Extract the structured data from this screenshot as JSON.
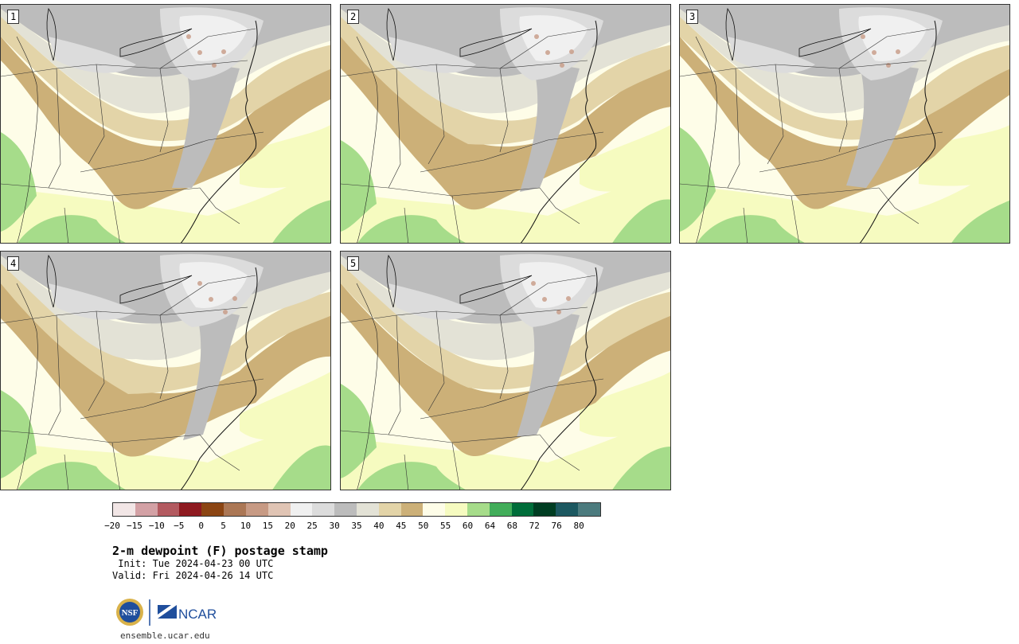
{
  "panels": [
    {
      "label": "1"
    },
    {
      "label": "2"
    },
    {
      "label": "3"
    },
    {
      "label": "4"
    },
    {
      "label": "5"
    }
  ],
  "colorbar": {
    "colors": [
      "#f2e6e6",
      "#d3a1a5",
      "#b35a60",
      "#8e1a20",
      "#8b4513",
      "#ab7755",
      "#c79a84",
      "#e0c4b4",
      "#f0f0f0",
      "#dcdcdc",
      "#bcbcbc",
      "#e3e2d6",
      "#e3d4a8",
      "#ccb078",
      "#fefde8",
      "#f6fbc0",
      "#a6dc8a",
      "#42ad5a",
      "#006d3a",
      "#003d22",
      "#1c5860",
      "#4c7b7e"
    ],
    "ticks": [
      "-20",
      "-15",
      "-10",
      "-5",
      "0",
      "5",
      "10",
      "15",
      "20",
      "25",
      "30",
      "35",
      "40",
      "45",
      "50",
      "55",
      "60",
      "64",
      "68",
      "72",
      "76",
      "80"
    ]
  },
  "title": "2-m dewpoint (F) postage stamp",
  "init": " Init: Tue 2024-04-23 00 UTC",
  "valid": "Valid: Fri 2024-04-26 14 UTC",
  "logos": {
    "nsf": "NSF",
    "ncar": "NCAR"
  },
  "site": "ensemble.ucar.edu"
}
